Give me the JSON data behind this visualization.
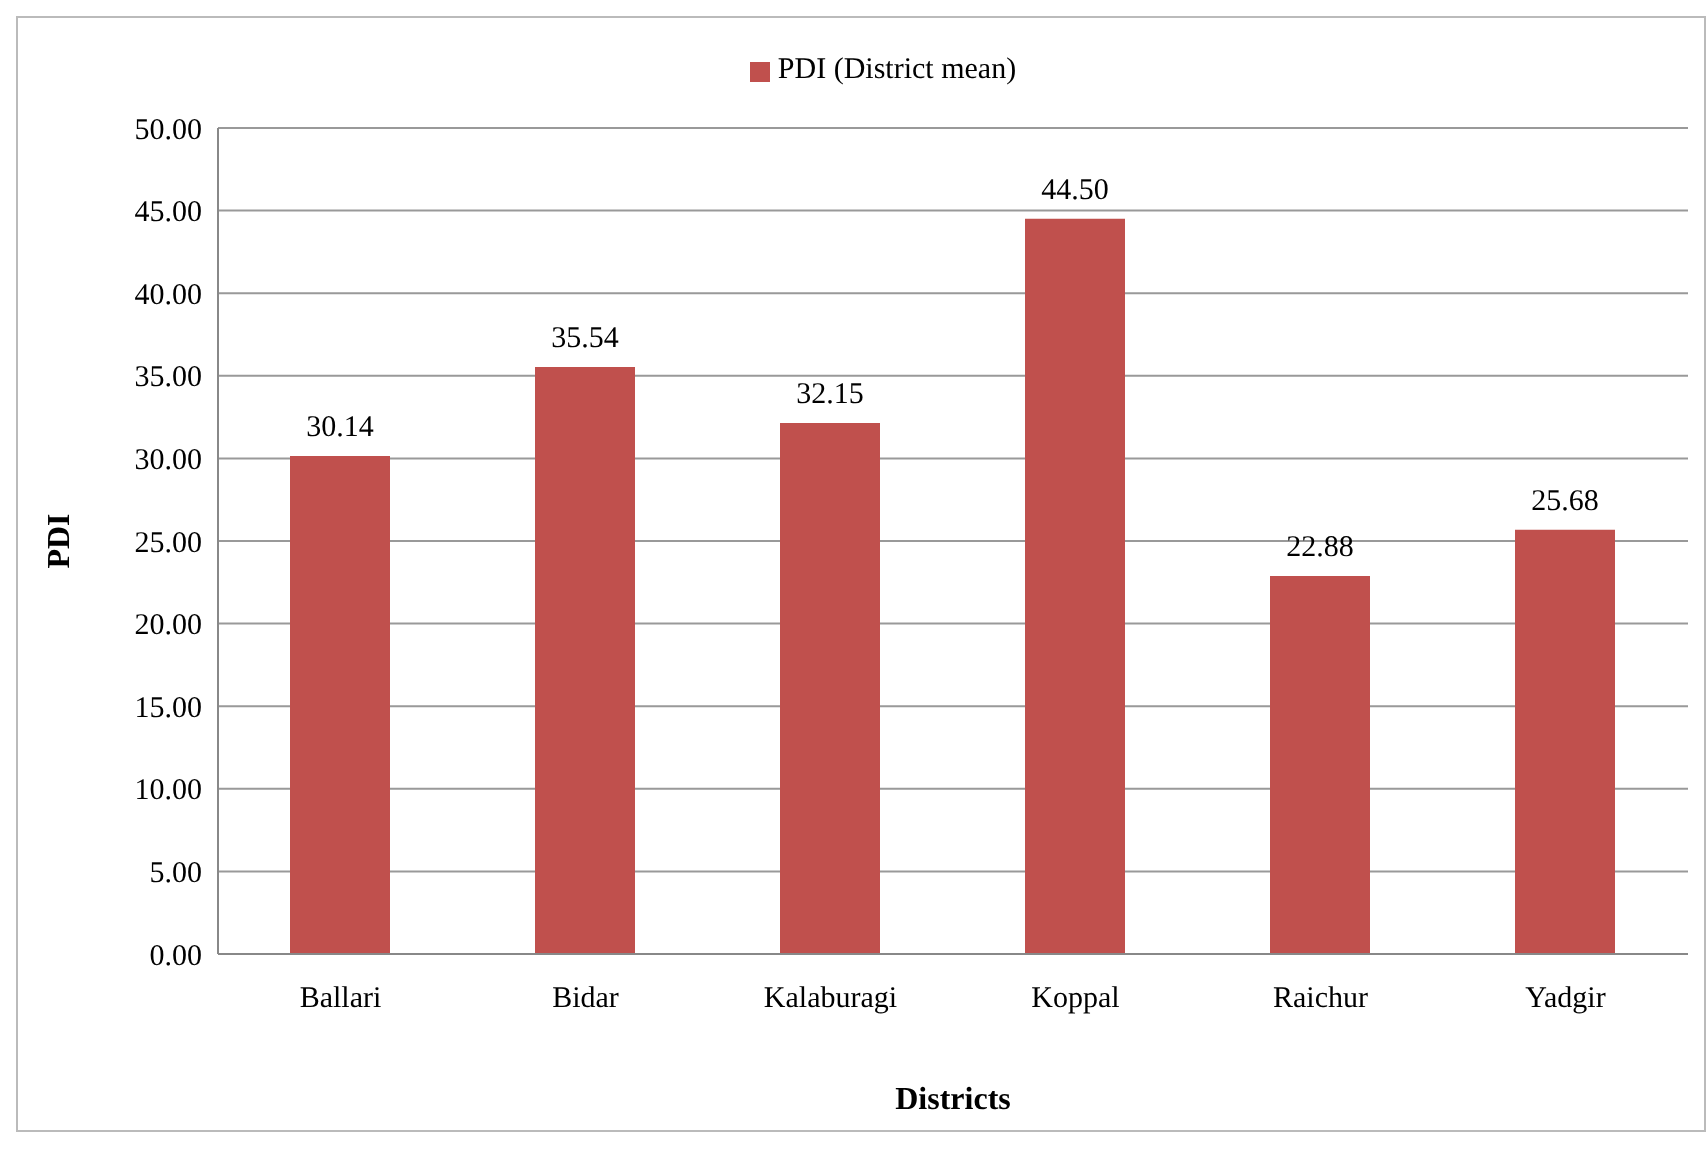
{
  "chart_data": {
    "type": "bar",
    "xlabel": "Districts",
    "ylabel": "PDI",
    "categories": [
      "Ballari",
      "Bidar",
      "Kalaburagi",
      "Koppal",
      "Raichur",
      "Yadgir"
    ],
    "series": [
      {
        "name": "PDI (District mean)",
        "color": "#c0504d",
        "values": [
          30.14,
          35.54,
          32.15,
          44.5,
          22.88,
          25.68
        ],
        "value_labels": [
          "30.14",
          "35.54",
          "32.15",
          "44.50",
          "22.88",
          "25.68"
        ]
      }
    ],
    "ylim": [
      0,
      50
    ],
    "yticks": [
      {
        "value": 0,
        "label": "0.00"
      },
      {
        "value": 5,
        "label": "5.00"
      },
      {
        "value": 10,
        "label": "10.00"
      },
      {
        "value": 15,
        "label": "15.00"
      },
      {
        "value": 20,
        "label": "20.00"
      },
      {
        "value": 25,
        "label": "25.00"
      },
      {
        "value": 30,
        "label": "30.00"
      },
      {
        "value": 35,
        "label": "35.00"
      },
      {
        "value": 40,
        "label": "40.00"
      },
      {
        "value": 45,
        "label": "45.00"
      },
      {
        "value": 50,
        "label": "50.00"
      }
    ],
    "grid": "y",
    "legend": "top"
  }
}
